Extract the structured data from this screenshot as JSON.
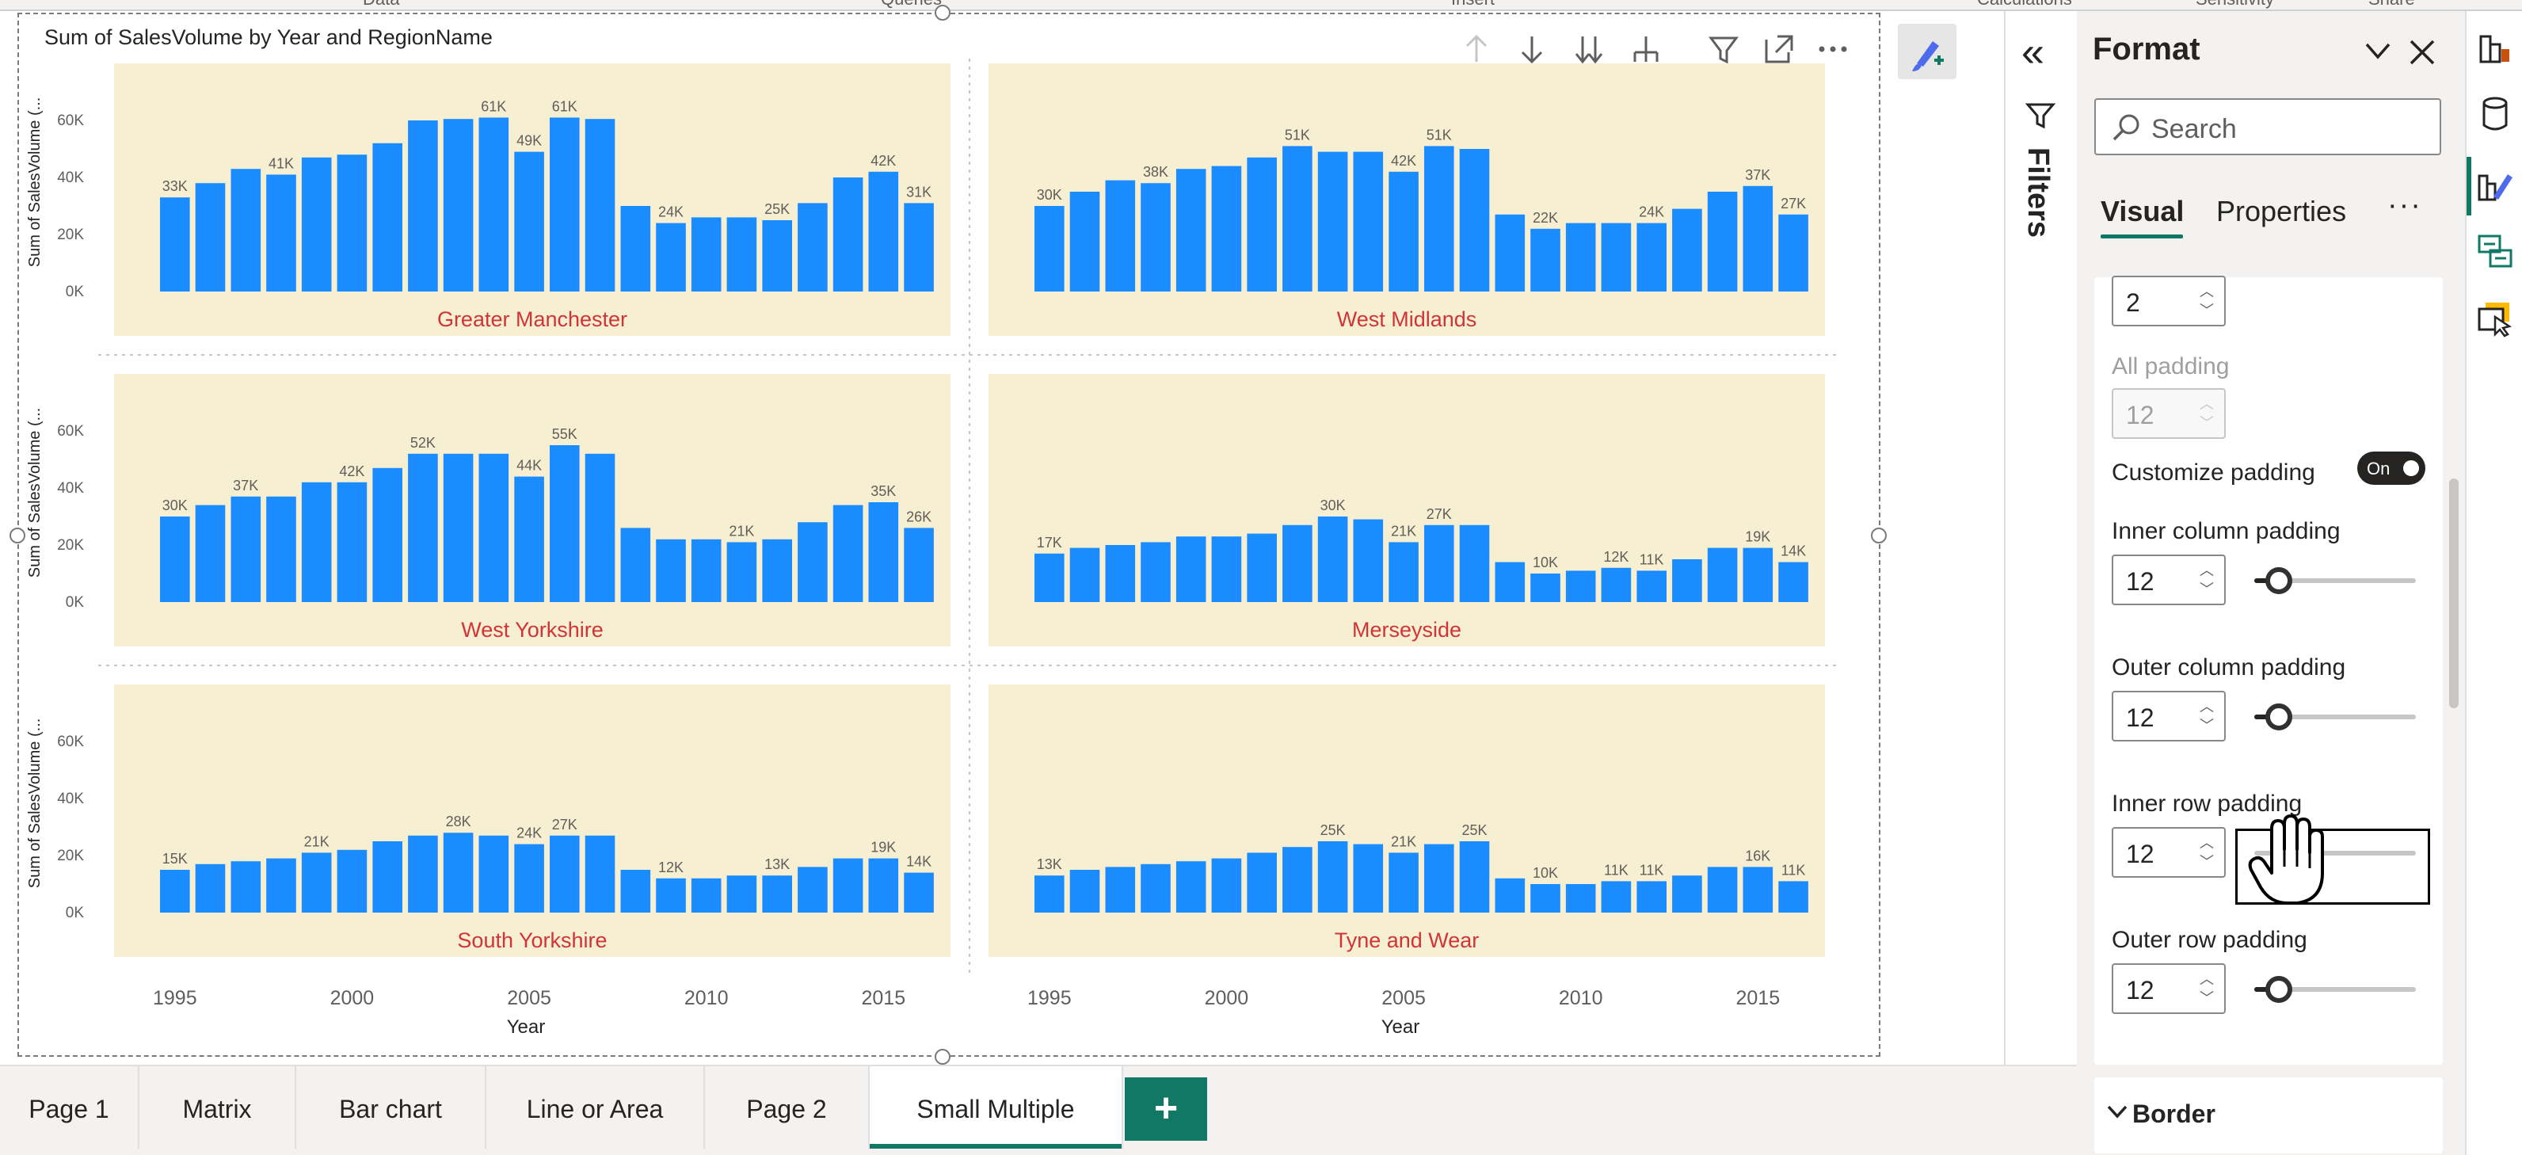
{
  "ribbon": {
    "groups": [
      "Data",
      "Queries",
      "Insert",
      "Calculations",
      "Sensitivity",
      "Share"
    ]
  },
  "visual": {
    "title": "Sum of SalesVolume by Year and RegionName",
    "header_icons": [
      "arrow-up-icon",
      "arrow-down-icon",
      "double-arrow-down-icon",
      "expand-hierarchy-icon",
      "filter-icon",
      "focus-mode-icon",
      "more-options-icon"
    ]
  },
  "chart_data": {
    "type": "bar",
    "title": "Sum of SalesVolume by Year and RegionName",
    "xlabel": "Year",
    "ylabel": "Sum of SalesVolume (...",
    "ylim": [
      0,
      70000
    ],
    "y_ticks": [
      "0K",
      "20K",
      "40K",
      "60K"
    ],
    "x_ticks": [
      "1995",
      "2000",
      "2005",
      "2010",
      "2015"
    ],
    "x": [
      1995,
      1996,
      1997,
      1998,
      1999,
      2000,
      2001,
      2002,
      2003,
      2004,
      2005,
      2006,
      2007,
      2008,
      2009,
      2010,
      2011,
      2012,
      2013,
      2014,
      2015,
      2016
    ],
    "colors": {
      "bar": "#1a8cff",
      "panel_bg": "#f7efd2",
      "region_label": "#d13438"
    },
    "series": [
      {
        "name": "Greater Manchester",
        "values": [
          33000,
          38000,
          43000,
          41000,
          47000,
          48000,
          52000,
          60000,
          60500,
          61000,
          49000,
          61000,
          60500,
          30000,
          24000,
          26000,
          26000,
          25000,
          31000,
          40000,
          42000,
          31000
        ],
        "labels": [
          "33K",
          "",
          "",
          "41K",
          "",
          "",
          "",
          "",
          "",
          "61K",
          "49K",
          "61K",
          "",
          "",
          "24K",
          "",
          "",
          "25K",
          "",
          "",
          "42K",
          "31K"
        ]
      },
      {
        "name": "West Midlands",
        "values": [
          30000,
          35000,
          39000,
          38000,
          43000,
          44000,
          47000,
          51000,
          49000,
          49000,
          42000,
          51000,
          50000,
          27000,
          22000,
          24000,
          24000,
          24000,
          29000,
          35000,
          37000,
          27000
        ],
        "labels": [
          "30K",
          "",
          "",
          "38K",
          "",
          "",
          "",
          "51K",
          "",
          "",
          "42K",
          "51K",
          "",
          "",
          "22K",
          "",
          "",
          "24K",
          "",
          "",
          "37K",
          "27K"
        ]
      },
      {
        "name": "West Yorkshire",
        "values": [
          30000,
          34000,
          37000,
          37000,
          42000,
          42000,
          47000,
          52000,
          52000,
          52000,
          44000,
          55000,
          52000,
          26000,
          22000,
          22000,
          21000,
          22000,
          28000,
          34000,
          35000,
          26000
        ],
        "labels": [
          "30K",
          "",
          "37K",
          "",
          "",
          "42K",
          "",
          "52K",
          "",
          "",
          "44K",
          "55K",
          "",
          "",
          "",
          "",
          "21K",
          "",
          "",
          "",
          "35K",
          "26K"
        ]
      },
      {
        "name": "Merseyside",
        "values": [
          17000,
          19000,
          20000,
          21000,
          23000,
          23000,
          24000,
          27000,
          30000,
          29000,
          21000,
          27000,
          27000,
          14000,
          10000,
          11000,
          12000,
          11000,
          15000,
          19000,
          19000,
          14000
        ],
        "labels": [
          "17K",
          "",
          "",
          "",
          "",
          "",
          "",
          "",
          "30K",
          "",
          "21K",
          "27K",
          "",
          "",
          "10K",
          "",
          "12K",
          "11K",
          "",
          "",
          "19K",
          "14K"
        ]
      },
      {
        "name": "South Yorkshire",
        "values": [
          15000,
          17000,
          18000,
          19000,
          21000,
          22000,
          25000,
          27000,
          28000,
          27000,
          24000,
          27000,
          27000,
          15000,
          12000,
          12000,
          13000,
          13000,
          16000,
          19000,
          19000,
          14000
        ],
        "labels": [
          "15K",
          "",
          "",
          "",
          "21K",
          "",
          "",
          "",
          "28K",
          "",
          "24K",
          "27K",
          "",
          "",
          "12K",
          "",
          "",
          "13K",
          "",
          "",
          "19K",
          "14K"
        ]
      },
      {
        "name": "Tyne and Wear",
        "values": [
          13000,
          15000,
          16000,
          17000,
          18000,
          19000,
          21000,
          23000,
          25000,
          24000,
          21000,
          24000,
          25000,
          12000,
          10000,
          10000,
          11000,
          11000,
          13000,
          16000,
          16000,
          11000
        ],
        "labels": [
          "13K",
          "",
          "",
          "",
          "",
          "",
          "",
          "",
          "25K",
          "",
          "21K",
          "",
          "25K",
          "",
          "10K",
          "",
          "11K",
          "11K",
          "",
          "",
          "16K",
          "11K"
        ]
      }
    ]
  },
  "filters": {
    "label": "Filters"
  },
  "format_pane": {
    "title": "Format",
    "search_placeholder": "Search",
    "tabs": {
      "visual": "Visual",
      "properties": "Properties",
      "more": "···"
    },
    "top_spin_value": "2",
    "all_padding": {
      "label": "All padding",
      "value": "12"
    },
    "customize_padding": {
      "label": "Customize padding",
      "toggle_text": "On",
      "on": true
    },
    "inner_column_padding": {
      "label": "Inner column padding",
      "value": "12",
      "slider_fraction": 0.15
    },
    "outer_column_padding": {
      "label": "Outer column padding",
      "value": "12",
      "slider_fraction": 0.15
    },
    "inner_row_padding": {
      "label": "Inner row padding",
      "value": "12"
    },
    "outer_row_padding": {
      "label": "Outer row padding",
      "value": "12",
      "slider_fraction": 0.15
    },
    "border_section": {
      "label": "Border",
      "chevron": "❯"
    }
  },
  "rail_icons": [
    "build-visual-icon",
    "data-icon",
    "format-visual-icon",
    "model-view-icon",
    "pointer-select-icon"
  ],
  "pages": {
    "tabs": [
      "Page 1",
      "Matrix",
      "Bar chart",
      "Line or Area",
      "Page 2",
      "Small Multiple"
    ],
    "active": "Small Multiple",
    "add_label": "+"
  }
}
